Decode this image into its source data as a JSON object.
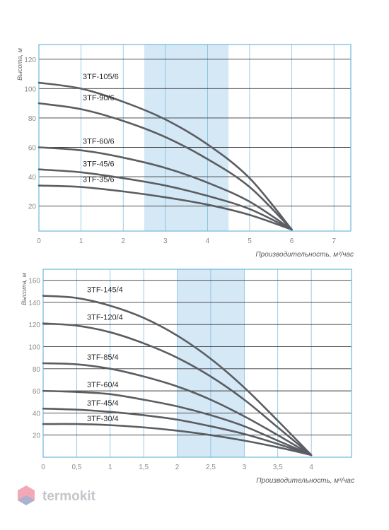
{
  "colors": {
    "curve": "#5a5d62",
    "band": "#d5e8f6",
    "frame": "#6fb7da",
    "hgrid": "#3a3a3a"
  },
  "logo": {
    "text": "termokit",
    "icon": "hexagon-logo-icon",
    "colors": [
      "#e8607a",
      "#7db6e3"
    ]
  },
  "chart_data": [
    {
      "type": "line",
      "ylabel": "Высота, м",
      "xlabel": "Производительность, м³/час",
      "xlim": [
        0,
        7.4
      ],
      "ylim": [
        3,
        130
      ],
      "xticks": [
        0,
        1,
        2,
        3,
        4,
        5,
        6,
        7
      ],
      "xtick_labels": [
        "0",
        "1",
        "2",
        "3",
        "4",
        "5",
        "6",
        "7"
      ],
      "yticks": [
        20,
        40,
        60,
        80,
        100,
        120
      ],
      "ytick_labels": [
        "20",
        "40",
        "60",
        "80",
        "100",
        "120"
      ],
      "highlight_band": [
        2.5,
        4.5
      ],
      "grid": true,
      "series": [
        {
          "name": "3TF-105/6",
          "x": [
            0,
            1,
            2,
            3,
            4,
            5,
            6
          ],
          "y": [
            104,
            100,
            91,
            79,
            62,
            39,
            4
          ]
        },
        {
          "name": "3TF-90/6",
          "x": [
            0,
            1,
            2,
            3,
            4,
            5,
            6
          ],
          "y": [
            90,
            86,
            78,
            67,
            52,
            33,
            4
          ]
        },
        {
          "name": "3TF-60/6",
          "x": [
            0,
            1,
            2,
            3,
            4,
            5,
            6
          ],
          "y": [
            60,
            58,
            53,
            46,
            36,
            23,
            4
          ]
        },
        {
          "name": "3TF-45/6",
          "x": [
            0,
            1,
            2,
            3,
            4,
            5,
            6
          ],
          "y": [
            45,
            43,
            39,
            34,
            27,
            18,
            4
          ]
        },
        {
          "name": "3TF-35/6",
          "x": [
            0,
            1,
            2,
            3,
            4,
            5,
            6
          ],
          "y": [
            34,
            33,
            30,
            26,
            21,
            14,
            4
          ]
        }
      ]
    },
    {
      "type": "line",
      "ylabel": "Высота, м",
      "xlabel": "Производительность, м³/час",
      "xlim": [
        0,
        4.6
      ],
      "ylim": [
        0,
        170
      ],
      "xticks": [
        0,
        0.5,
        1,
        1.5,
        2,
        2.5,
        3,
        3.5,
        4
      ],
      "xtick_labels": [
        "0",
        "0,5",
        "1",
        "1,5",
        "2",
        "2,5",
        "3",
        "3,5",
        "4"
      ],
      "yticks": [
        20,
        40,
        60,
        80,
        100,
        120,
        140,
        160
      ],
      "ytick_labels": [
        "20",
        "40",
        "60",
        "80",
        "100",
        "120",
        "140",
        "160"
      ],
      "highlight_band": [
        2,
        3
      ],
      "grid": true,
      "series": [
        {
          "name": "3TF-145/4",
          "x": [
            0,
            0.5,
            1,
            1.5,
            2,
            2.5,
            3,
            3.5,
            4
          ],
          "y": [
            146,
            144,
            137,
            126,
            110,
            89,
            63,
            33,
            2
          ]
        },
        {
          "name": "3TF-120/4",
          "x": [
            0,
            0.5,
            1,
            1.5,
            2,
            2.5,
            3,
            3.5,
            4
          ],
          "y": [
            121,
            119,
            113,
            103,
            90,
            73,
            52,
            27,
            2
          ]
        },
        {
          "name": "3TF-85/4",
          "x": [
            0,
            0.5,
            1,
            1.5,
            2,
            2.5,
            3,
            3.5,
            4
          ],
          "y": [
            85,
            84,
            80,
            73,
            64,
            52,
            37,
            20,
            2
          ]
        },
        {
          "name": "3TF-60/4",
          "x": [
            0,
            0.5,
            1,
            1.5,
            2,
            2.5,
            3,
            3.5,
            4
          ],
          "y": [
            60,
            59,
            57,
            52,
            46,
            38,
            28,
            15,
            2
          ]
        },
        {
          "name": "3TF-45/4",
          "x": [
            0,
            0.5,
            1,
            1.5,
            2,
            2.5,
            3,
            3.5,
            4
          ],
          "y": [
            44,
            43,
            41,
            38,
            34,
            28,
            21,
            12,
            2
          ]
        },
        {
          "name": "3TF-30/4",
          "x": [
            0,
            0.5,
            1,
            1.5,
            2,
            2.5,
            3,
            3.5,
            4
          ],
          "y": [
            30,
            30,
            29,
            27,
            24,
            20,
            15,
            9,
            2
          ]
        }
      ]
    }
  ]
}
